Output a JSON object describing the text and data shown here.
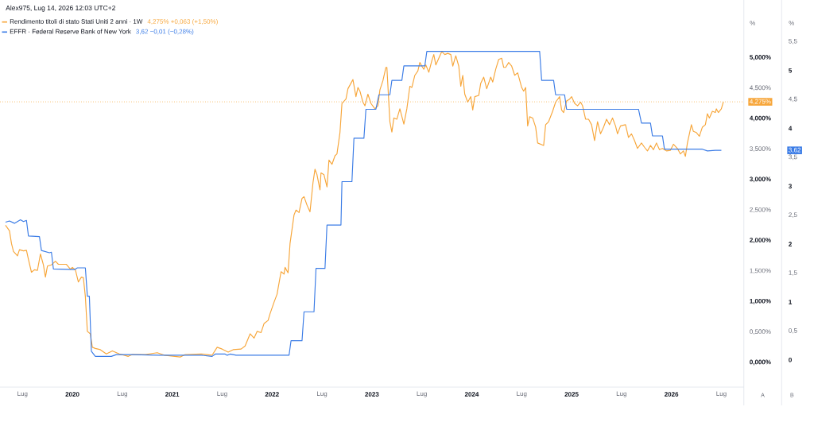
{
  "chart_data": {
    "type": "line",
    "annotations": [
      "Alex975, Lug 14, 2026 12:03 UTC+2",
      "4,275% +0,063 (+1,50%)",
      "3,62 −0,01 (−0,28%)",
      "A",
      "B"
    ],
    "ylabel": "%",
    "y2label": "%",
    "xlim": [
      2019.275,
      2026.725
    ],
    "xticks": [
      {
        "value": 2019.5,
        "label": "Lug"
      },
      2020,
      {
        "value": 2020.5,
        "label": "Lug"
      },
      2021,
      {
        "value": 2021.5,
        "label": "Lug"
      },
      2022,
      {
        "value": 2022.5,
        "label": "Lug"
      },
      2023,
      {
        "value": 2023.5,
        "label": "Lug"
      },
      2024,
      {
        "value": 2024.5,
        "label": "Lug"
      },
      2025,
      {
        "value": 2025.5,
        "label": "Lug"
      },
      2026,
      {
        "value": 2026.5,
        "label": "Lug"
      }
    ],
    "ylim": [
      -0.404,
      5.945
    ],
    "yticks": [
      {
        "value": 0,
        "label": "0,000%"
      },
      {
        "value": 0.5,
        "label": "0,500%"
      },
      {
        "value": 1,
        "label": "1,000%"
      },
      {
        "value": 1.5,
        "label": "1,500%"
      },
      {
        "value": 2,
        "label": "2,000%"
      },
      {
        "value": 2.5,
        "label": "2,500%"
      },
      {
        "value": 3,
        "label": "3,000%"
      },
      {
        "value": 3.5,
        "label": "3,500%"
      },
      {
        "value": 4,
        "label": "4,000%"
      },
      {
        "value": 4.275,
        "label": "4,275%"
      },
      {
        "value": 4.5,
        "label": "4,500%"
      },
      {
        "value": 5,
        "label": "5,000%"
      }
    ],
    "y2lim": [
      -0.471,
      6.218
    ],
    "y2ticks": [
      0,
      {
        "value": 0.5,
        "label": "0,5"
      },
      1,
      {
        "value": 1.5,
        "label": "1,5"
      },
      2,
      {
        "value": 2.5,
        "label": "2,5"
      },
      3,
      {
        "value": 3.5,
        "label": "3,5"
      },
      {
        "value": 3.62,
        "label": "3,62"
      },
      4,
      {
        "value": 4.5,
        "label": "4,5"
      },
      5,
      {
        "value": 5.5,
        "label": "5,5"
      }
    ],
    "legend": "top left",
    "ref_lines": [
      {
        "axis": "y",
        "value": 4.275,
        "color": "#f7a63a",
        "line_style": "dotted"
      }
    ],
    "series": [
      {
        "name": "Rendimento titoli di stato Stati Uniti 2 anni · 1W",
        "color": "#f7a63a",
        "x": [
          2019.33,
          2019.37,
          2019.39,
          2019.41,
          2019.45,
          2019.47,
          2019.51,
          2019.54,
          2019.56,
          2019.59,
          2019.62,
          2019.65,
          2019.68,
          2019.71,
          2019.73,
          2019.75,
          2019.79,
          2019.83,
          2019.86,
          2019.94,
          2019.98,
          2020.0,
          2020.03,
          2020.06,
          2020.09,
          2020.11,
          2020.13,
          2020.15,
          2020.18,
          2020.2,
          2020.23,
          2020.28,
          2020.34,
          2020.4,
          2020.47,
          2020.56,
          2020.6,
          2020.73,
          2020.85,
          2020.92,
          2021.08,
          2021.13,
          2021.29,
          2021.4,
          2021.45,
          2021.5,
          2021.56,
          2021.61,
          2021.69,
          2021.73,
          2021.78,
          2021.82,
          2021.85,
          2021.89,
          2021.92,
          2021.96,
          2021.98,
          2022.02,
          2022.05,
          2022.09,
          2022.12,
          2022.13,
          2022.16,
          2022.18,
          2022.22,
          2022.24,
          2022.27,
          2022.3,
          2022.32,
          2022.35,
          2022.38,
          2022.41,
          2022.43,
          2022.45,
          2022.48,
          2022.49,
          2022.52,
          2022.55,
          2022.57,
          2022.6,
          2022.63,
          2022.65,
          2022.68,
          2022.7,
          2022.74,
          2022.76,
          2022.81,
          2022.84,
          2022.86,
          2022.88,
          2022.91,
          2022.93,
          2022.96,
          2022.99,
          2023.03,
          2023.06,
          2023.08,
          2023.11,
          2023.14,
          2023.15,
          2023.18,
          2023.2,
          2023.22,
          2023.25,
          2023.28,
          2023.32,
          2023.35,
          2023.38,
          2023.4,
          2023.43,
          2023.46,
          2023.48,
          2023.5,
          2023.52,
          2023.54,
          2023.57,
          2023.6,
          2023.62,
          2023.64,
          2023.67,
          2023.7,
          2023.73,
          2023.76,
          2023.79,
          2023.81,
          2023.84,
          2023.87,
          2023.89,
          2023.91,
          2023.93,
          2023.96,
          2023.99,
          2024.01,
          2024.03,
          2024.07,
          2024.09,
          2024.12,
          2024.15,
          2024.19,
          2024.21,
          2024.24,
          2024.27,
          2024.3,
          2024.32,
          2024.34,
          2024.37,
          2024.4,
          2024.43,
          2024.46,
          2024.5,
          2024.52,
          2024.54,
          2024.56,
          2024.58,
          2024.61,
          2024.64,
          2024.66,
          2024.69,
          2024.72,
          2024.74,
          2024.77,
          2024.81,
          2024.84,
          2024.88,
          2024.9,
          2024.92,
          2024.95,
          2024.98,
          2025.0,
          2025.03,
          2025.06,
          2025.09,
          2025.11,
          2025.14,
          2025.17,
          2025.2,
          2025.23,
          2025.26,
          2025.29,
          2025.32,
          2025.35,
          2025.38,
          2025.41,
          2025.44,
          2025.46,
          2025.49,
          2025.54,
          2025.57,
          2025.6,
          2025.63,
          2025.66,
          2025.7,
          2025.73,
          2025.76,
          2025.79,
          2025.82,
          2025.85,
          2025.88,
          2025.91,
          2025.95,
          2025.99,
          2026.02,
          2026.06,
          2026.09,
          2026.12,
          2026.14,
          2026.16,
          2026.2,
          2026.22,
          2026.25,
          2026.28,
          2026.31,
          2026.34,
          2026.36,
          2026.38,
          2026.41,
          2026.44,
          2026.45,
          2026.47,
          2026.5,
          2026.52
        ],
        "values": [
          2.25,
          2.16,
          1.95,
          1.82,
          1.75,
          1.85,
          1.83,
          1.84,
          1.69,
          1.48,
          1.52,
          1.51,
          1.78,
          1.6,
          1.4,
          1.58,
          1.6,
          1.66,
          1.61,
          1.61,
          1.53,
          1.56,
          1.52,
          1.32,
          1.4,
          1.39,
          1.08,
          0.51,
          0.47,
          0.25,
          0.23,
          0.21,
          0.14,
          0.19,
          0.14,
          0.1,
          0.13,
          0.13,
          0.16,
          0.12,
          0.09,
          0.13,
          0.14,
          0.12,
          0.25,
          0.22,
          0.17,
          0.21,
          0.22,
          0.27,
          0.47,
          0.4,
          0.51,
          0.49,
          0.64,
          0.69,
          0.8,
          0.99,
          1.12,
          1.49,
          1.45,
          1.56,
          1.47,
          1.95,
          2.42,
          2.5,
          2.46,
          2.69,
          2.72,
          2.58,
          2.47,
          2.95,
          3.17,
          3.08,
          2.83,
          3.11,
          3.08,
          2.88,
          3.32,
          3.25,
          3.39,
          3.42,
          3.77,
          4.25,
          4.32,
          4.49,
          4.64,
          4.36,
          4.51,
          4.45,
          4.27,
          4.21,
          4.4,
          4.25,
          4.16,
          4.21,
          4.47,
          4.62,
          4.84,
          4.84,
          3.95,
          3.78,
          4.01,
          3.99,
          4.16,
          3.91,
          4.16,
          4.53,
          4.51,
          4.71,
          4.78,
          4.92,
          4.86,
          4.81,
          4.88,
          4.76,
          4.95,
          5.05,
          4.88,
          4.99,
          5.1,
          5.05,
          5.07,
          5.05,
          4.86,
          5.03,
          4.86,
          4.53,
          4.71,
          4.4,
          4.27,
          4.36,
          4.14,
          4.36,
          4.38,
          4.58,
          4.68,
          4.49,
          4.68,
          4.6,
          4.81,
          4.97,
          4.99,
          4.84,
          4.84,
          4.92,
          4.86,
          4.71,
          4.75,
          4.51,
          4.45,
          4.51,
          3.88,
          4.03,
          4.01,
          3.86,
          3.6,
          3.58,
          3.56,
          3.9,
          3.95,
          4.12,
          4.27,
          4.36,
          4.14,
          4.1,
          4.29,
          4.32,
          4.36,
          4.25,
          4.21,
          4.27,
          4.21,
          3.99,
          3.99,
          3.9,
          3.64,
          3.95,
          3.75,
          3.86,
          3.99,
          3.9,
          4.01,
          3.88,
          3.75,
          3.88,
          3.9,
          3.69,
          3.75,
          3.64,
          3.51,
          3.6,
          3.53,
          3.47,
          3.56,
          3.49,
          3.6,
          3.49,
          3.51,
          3.47,
          3.48,
          3.58,
          3.51,
          3.42,
          3.47,
          3.38,
          3.6,
          3.9,
          3.79,
          3.77,
          3.71,
          3.86,
          3.9,
          4.08,
          4.01,
          4.12,
          4.1,
          4.16,
          4.1,
          4.16,
          4.275
        ]
      },
      {
        "name": "EFFR · Federal Reserve Bank of New York",
        "color": "#3b7ce6",
        "axis": "y2",
        "x": [
          2019.33,
          2019.37,
          2019.42,
          2019.48,
          2019.51,
          2019.54,
          2019.56,
          2019.67,
          2019.69,
          2019.77,
          2019.79,
          2019.81,
          2020.02,
          2020.05,
          2020.13,
          2020.15,
          2020.17,
          2020.19,
          2020.23,
          2020.39,
          2020.44,
          2020.6,
          2020.87,
          2021.13,
          2021.29,
          2021.4,
          2021.43,
          2021.53,
          2021.55,
          2021.58,
          2021.64,
          2022.17,
          2022.19,
          2022.3,
          2022.32,
          2022.42,
          2022.44,
          2022.53,
          2022.55,
          2022.69,
          2022.7,
          2022.8,
          2022.82,
          2022.92,
          2022.94,
          2023.04,
          2023.07,
          2023.18,
          2023.2,
          2023.3,
          2023.32,
          2023.53,
          2023.55,
          2024.68,
          2024.7,
          2024.82,
          2024.84,
          2024.93,
          2024.95,
          2025.67,
          2025.7,
          2025.79,
          2025.81,
          2025.91,
          2025.93,
          2026.31,
          2026.36,
          2026.44,
          2026.5
        ],
        "values": [
          2.38,
          2.4,
          2.36,
          2.42,
          2.39,
          2.41,
          2.14,
          2.13,
          1.89,
          1.85,
          1.86,
          1.57,
          1.56,
          1.59,
          1.59,
          1.1,
          1.1,
          0.15,
          0.06,
          0.06,
          0.09,
          0.09,
          0.08,
          0.08,
          0.08,
          0.06,
          0.1,
          0.1,
          0.08,
          0.1,
          0.08,
          0.08,
          0.33,
          0.33,
          0.83,
          0.83,
          1.58,
          1.58,
          2.33,
          2.33,
          3.08,
          3.08,
          3.83,
          3.83,
          4.33,
          4.33,
          4.58,
          4.58,
          4.83,
          4.83,
          5.08,
          5.08,
          5.33,
          5.33,
          4.83,
          4.83,
          4.58,
          4.58,
          4.33,
          4.33,
          4.09,
          4.09,
          3.87,
          3.87,
          3.64,
          3.64,
          3.61,
          3.62,
          3.62
        ]
      }
    ]
  }
}
